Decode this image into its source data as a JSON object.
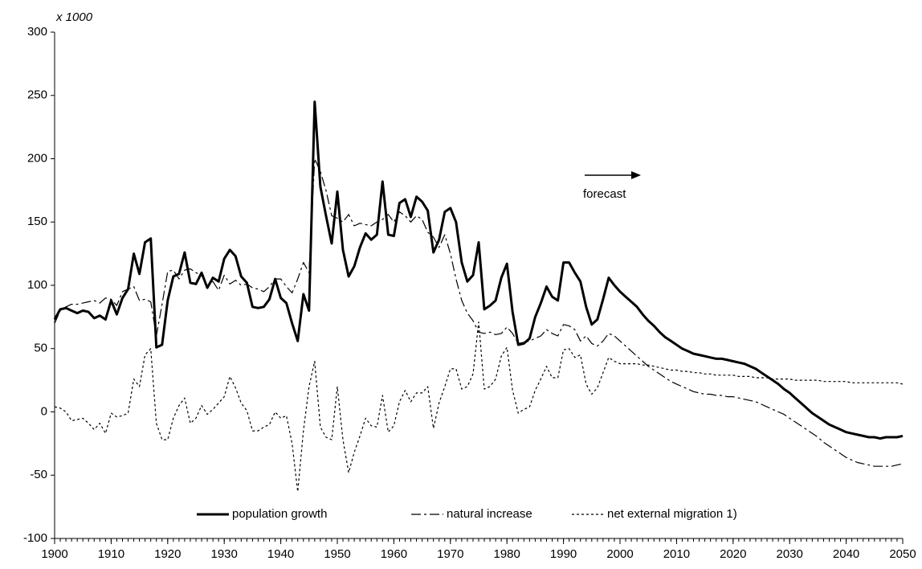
{
  "chart_data": {
    "type": "line",
    "y_axis_label": "x 1000",
    "annotation": "forecast",
    "x": [
      1900,
      1901,
      1902,
      1903,
      1904,
      1905,
      1906,
      1907,
      1908,
      1909,
      1910,
      1911,
      1912,
      1913,
      1914,
      1915,
      1916,
      1917,
      1918,
      1919,
      1920,
      1921,
      1922,
      1923,
      1924,
      1925,
      1926,
      1927,
      1928,
      1929,
      1930,
      1931,
      1932,
      1933,
      1934,
      1935,
      1936,
      1937,
      1938,
      1939,
      1940,
      1941,
      1942,
      1943,
      1944,
      1945,
      1946,
      1947,
      1948,
      1949,
      1950,
      1951,
      1952,
      1953,
      1954,
      1955,
      1956,
      1957,
      1958,
      1959,
      1960,
      1961,
      1962,
      1963,
      1964,
      1965,
      1966,
      1967,
      1968,
      1969,
      1970,
      1971,
      1972,
      1973,
      1974,
      1975,
      1976,
      1977,
      1978,
      1979,
      1980,
      1981,
      1982,
      1983,
      1984,
      1985,
      1986,
      1987,
      1988,
      1989,
      1990,
      1991,
      1992,
      1993,
      1994,
      1995,
      1996,
      1997,
      1998,
      1999,
      2000,
      2001,
      2002,
      2003,
      2004,
      2005,
      2006,
      2007,
      2008,
      2009,
      2010,
      2011,
      2012,
      2013,
      2014,
      2015,
      2016,
      2017,
      2018,
      2019,
      2020,
      2021,
      2022,
      2023,
      2024,
      2025,
      2026,
      2027,
      2028,
      2029,
      2030,
      2031,
      2032,
      2033,
      2034,
      2035,
      2036,
      2037,
      2038,
      2039,
      2040,
      2041,
      2042,
      2043,
      2044,
      2045,
      2046,
      2047,
      2048,
      2049,
      2050
    ],
    "series": [
      {
        "name": "population growth",
        "color": "#000000",
        "width": 3,
        "dash": "solid",
        "values": [
          73,
          81,
          82,
          80,
          78,
          80,
          79,
          74,
          76,
          73,
          88,
          77,
          90,
          97,
          125,
          109,
          134,
          137,
          51,
          53,
          88,
          107,
          109,
          126,
          102,
          101,
          110,
          98,
          106,
          103,
          121,
          128,
          123,
          107,
          102,
          83,
          82,
          83,
          89,
          105,
          90,
          86,
          70,
          56,
          93,
          80,
          245,
          178,
          155,
          133,
          174,
          128,
          107,
          115,
          130,
          141,
          136,
          140,
          182,
          140,
          139,
          165,
          168,
          154,
          170,
          166,
          159,
          126,
          136,
          158,
          161,
          150,
          118,
          103,
          108,
          134,
          81,
          84,
          88,
          106,
          117,
          79,
          53,
          54,
          58,
          75,
          86,
          99,
          91,
          88,
          118,
          118,
          110,
          103,
          83,
          69,
          73,
          89,
          106,
          100,
          95,
          91,
          87,
          83,
          77,
          72,
          68,
          63,
          59,
          56,
          53,
          50,
          48,
          46,
          45,
          44,
          43,
          42,
          42,
          41,
          40,
          39,
          38,
          36,
          34,
          31,
          28,
          25,
          22,
          18,
          15,
          11,
          7,
          3,
          -1,
          -4,
          -7,
          -10,
          -12,
          -14,
          -16,
          -17,
          -18,
          -19,
          -20,
          -20,
          -21,
          -20,
          -20,
          -20,
          -19
        ]
      },
      {
        "name": "natural increase",
        "color": "#000000",
        "width": 1.2,
        "dash": "dashed",
        "values": [
          70,
          80,
          83,
          85,
          85,
          86,
          87,
          88,
          86,
          90,
          89,
          84,
          95,
          97,
          99,
          88,
          89,
          87,
          60,
          85,
          111,
          112,
          105,
          112,
          113,
          110,
          108,
          100,
          103,
          96,
          108,
          101,
          104,
          100,
          101,
          98,
          97,
          95,
          99,
          105,
          105,
          99,
          94,
          105,
          118,
          110,
          200,
          190,
          175,
          155,
          153,
          150,
          156,
          147,
          149,
          148,
          147,
          150,
          152,
          156,
          150,
          158,
          155,
          150,
          155,
          152,
          142,
          138,
          130,
          140,
          125,
          105,
          88,
          78,
          72,
          63,
          62,
          63,
          61,
          62,
          67,
          62,
          54,
          55,
          56,
          58,
          60,
          65,
          62,
          60,
          69,
          68,
          65,
          56,
          60,
          54,
          52,
          56,
          62,
          60,
          56,
          52,
          48,
          44,
          40,
          36,
          33,
          30,
          27,
          24,
          22,
          20,
          18,
          16,
          15,
          14,
          14,
          13,
          13,
          12,
          12,
          11,
          10,
          9,
          8,
          6,
          4,
          2,
          0,
          -2,
          -5,
          -8,
          -11,
          -14,
          -17,
          -20,
          -24,
          -27,
          -30,
          -33,
          -36,
          -38,
          -40,
          -41,
          -42,
          -43,
          -43,
          -43,
          -43,
          -42,
          -41
        ]
      },
      {
        "name": "net external migration 1)",
        "color": "#000000",
        "width": 1.2,
        "dash": "dotted",
        "values": [
          4,
          3,
          0,
          -7,
          -6,
          -5,
          -9,
          -14,
          -9,
          -17,
          -1,
          -4,
          -3,
          -1,
          26,
          20,
          45,
          50,
          -9,
          -22,
          -22,
          -5,
          5,
          11,
          -9,
          -5,
          5,
          -2,
          2,
          7,
          12,
          28,
          19,
          7,
          1,
          -15,
          -15,
          -12,
          -10,
          0,
          -5,
          -3,
          -25,
          -63,
          -15,
          20,
          40,
          -12,
          -20,
          -22,
          20,
          -22,
          -48,
          -32,
          -19,
          -5,
          -11,
          -12,
          13,
          -16,
          -11,
          8,
          17,
          8,
          15,
          15,
          20,
          -13,
          7,
          20,
          34,
          34,
          18,
          20,
          30,
          71,
          18,
          20,
          26,
          44,
          51,
          17,
          -1,
          2,
          4,
          17,
          26,
          36,
          27,
          27,
          49,
          50,
          43,
          45,
          22,
          14,
          19,
          31,
          43,
          40,
          38,
          38,
          38,
          38,
          37,
          37,
          36,
          35,
          34,
          33,
          33,
          32,
          32,
          31,
          31,
          30,
          30,
          29,
          29,
          29,
          29,
          28,
          28,
          28,
          27,
          27,
          27,
          26,
          26,
          26,
          26,
          25,
          25,
          25,
          25,
          25,
          24,
          24,
          24,
          24,
          24,
          23,
          23,
          23,
          23,
          23,
          23,
          23,
          23,
          23,
          22
        ]
      }
    ],
    "xlim": [
      1900,
      2050
    ],
    "ylim": [
      -100,
      300
    ],
    "xticks": [
      1900,
      1910,
      1920,
      1930,
      1940,
      1950,
      1960,
      1970,
      1980,
      1990,
      2000,
      2010,
      2020,
      2030,
      2040,
      2050
    ],
    "yticks": [
      -100,
      -50,
      0,
      50,
      100,
      150,
      200,
      250,
      300
    ],
    "grid": false,
    "legend": "bottom"
  }
}
